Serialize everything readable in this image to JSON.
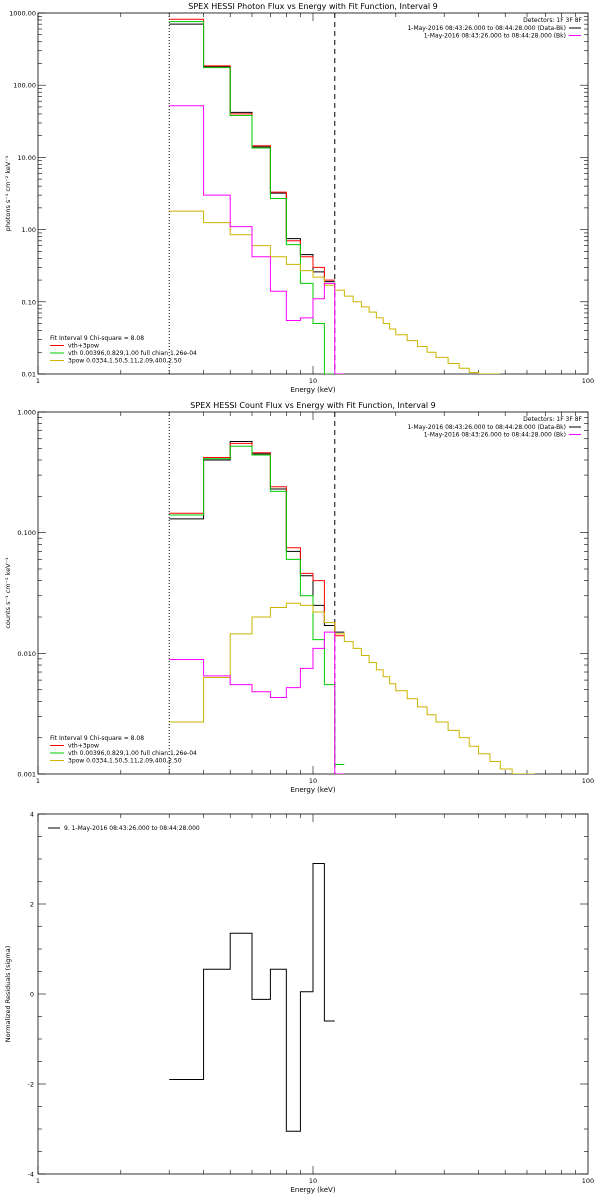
{
  "chart_data": [
    {
      "type": "line",
      "title": "SPEX HESSI Photon Flux vs Energy with Fit Function, Interval 9",
      "xlabel": "Energy (keV)",
      "ylabel": "photons s⁻¹ cm⁻² keV⁻¹",
      "xlim": [
        1,
        100
      ],
      "ylim": [
        0.01,
        1000
      ],
      "log_x": true,
      "log_y": true,
      "x_tick_labels": [
        "1",
        "10",
        "100"
      ],
      "y_tick_labels": [
        "0.01",
        "0.10",
        "1.00",
        "10.00",
        "100.00",
        "1000.00"
      ],
      "vlines": [
        {
          "x": 3,
          "style": "dotted",
          "color": "#000000"
        },
        {
          "x": 12,
          "style": "dashed",
          "color": "#000000"
        }
      ],
      "edges": [
        3,
        4,
        5,
        6,
        7,
        8,
        9,
        10,
        11,
        12,
        13,
        14,
        15,
        16,
        17,
        18,
        19,
        20,
        22,
        24,
        26,
        28,
        31,
        34,
        37,
        40,
        44,
        48
      ],
      "series": [
        {
          "name": "",
          "color": "#000000",
          "x_start": 3,
          "values": [
            700,
            180,
            42,
            14,
            3.2,
            0.75,
            0.45,
            0.26,
            0.19
          ]
        },
        {
          "name": "vth+3pow",
          "color": "#ff0000",
          "x_start": 3,
          "values": [
            820,
            185,
            40,
            14.5,
            3.3,
            0.7,
            0.42,
            0.3,
            0.2
          ]
        },
        {
          "name": "vth 0.00396,0.829,1.00  full chian 1.26e-04",
          "color": "#00cc00",
          "x_start": 3,
          "values": [
            760,
            175,
            38,
            13.5,
            2.7,
            0.62,
            0.18,
            0.05,
            0.004
          ]
        },
        {
          "name": "3pow 0.0334,1.50,5.11,2.09,400,2.50",
          "color": "#ccb400",
          "x_start": 3,
          "values": [
            1.8,
            1.25,
            0.85,
            0.6,
            0.42,
            0.33,
            0.27,
            0.22,
            0.17,
            0.145,
            0.12,
            0.1,
            0.085,
            0.072,
            0.06,
            0.05,
            0.042,
            0.035,
            0.029,
            0.024,
            0.02,
            0.017,
            0.014,
            0.012,
            0.0105,
            0.0095,
            0.008
          ]
        },
        {
          "name": "",
          "color": "#ff00ff",
          "x_start": 3,
          "values": [
            52,
            3,
            1.1,
            0.42,
            0.14,
            0.055,
            0.06,
            0.11,
            0.18,
            0.008
          ]
        }
      ],
      "legend": {
        "interval_label": "Fit Interval  9    Chi-square = 8.08",
        "detectors": "Detectors: 1F 3F 8F",
        "time_lines": [
          {
            "text": "1-May-2016 08:43:26.000 to 08:44:28.000 (Data-Bk)",
            "color": "#000000"
          },
          {
            "text": "1-May-2016 08:43:26.000 to 08:44:28.000 (Bk)",
            "color": "#ff00ff"
          }
        ]
      }
    },
    {
      "type": "line",
      "title": "SPEX HESSI Count Flux vs Energy with Fit Function, Interval 9",
      "xlabel": "Energy (keV)",
      "ylabel": "counts s⁻¹ cm⁻² keV⁻¹",
      "xlim": [
        1,
        100
      ],
      "ylim": [
        0.001,
        1
      ],
      "log_x": true,
      "log_y": true,
      "x_tick_labels": [
        "1",
        "10",
        "100"
      ],
      "y_tick_labels": [
        "0.001",
        "0.010",
        "0.100",
        "1.000"
      ],
      "vlines": [
        {
          "x": 3,
          "style": "dotted",
          "color": "#000000"
        },
        {
          "x": 12,
          "style": "dashed",
          "color": "#000000"
        }
      ],
      "edges": [
        3,
        4,
        5,
        6,
        7,
        8,
        9,
        10,
        11,
        12,
        13,
        14,
        15,
        16,
        17,
        18,
        19,
        20,
        22,
        24,
        26,
        28,
        31,
        34,
        37,
        40,
        44,
        48,
        53,
        58,
        64
      ],
      "series": [
        {
          "name": "",
          "color": "#000000",
          "x_start": 3,
          "values": [
            0.13,
            0.4,
            0.57,
            0.45,
            0.23,
            0.07,
            0.044,
            0.025,
            0.017,
            0.015
          ]
        },
        {
          "name": "vth+3pow",
          "color": "#ff0000",
          "x_start": 3,
          "values": [
            0.145,
            0.42,
            0.55,
            0.46,
            0.24,
            0.075,
            0.046,
            0.04,
            0.018,
            0.014
          ]
        },
        {
          "name": "vth 0.00396,0.829,1.00  full chian 1.26e-04",
          "color": "#00cc00",
          "x_start": 3,
          "values": [
            0.14,
            0.41,
            0.52,
            0.44,
            0.22,
            0.06,
            0.03,
            0.013,
            0.0055,
            0.0012
          ]
        },
        {
          "name": "3pow 0.0334,1.50,5.11,2.09,400,2.50",
          "color": "#ccb400",
          "x_start": 3,
          "values": [
            0.0027,
            0.0063,
            0.0145,
            0.02,
            0.024,
            0.026,
            0.025,
            0.022,
            0.018,
            0.0145,
            0.0125,
            0.011,
            0.0096,
            0.0084,
            0.0073,
            0.0064,
            0.0056,
            0.0049,
            0.0042,
            0.0036,
            0.0031,
            0.0027,
            0.0023,
            0.002,
            0.0017,
            0.00147,
            0.00127,
            0.0011,
            0.00095,
            0.00085
          ]
        },
        {
          "name": "",
          "color": "#ff00ff",
          "x_start": 3,
          "values": [
            0.0089,
            0.0065,
            0.0055,
            0.0048,
            0.0043,
            0.0052,
            0.0075,
            0.011,
            0.015,
            0.0009
          ]
        }
      ],
      "legend": {
        "interval_label": "Fit Interval  9    Chi-square = 8.08",
        "detectors": "Detectors: 1F 3F 8F",
        "time_lines": [
          {
            "text": "1-May-2016 08:43:26.000 to 08:44:28.000 (Data-Bk)",
            "color": "#000000"
          },
          {
            "text": "1-May-2016 08:43:26.000 to 08:44:28.000 (Bk)",
            "color": "#ff00ff"
          }
        ]
      }
    },
    {
      "type": "line",
      "title": "",
      "xlabel": "Energy (keV)",
      "ylabel": "Normalized Residuals (sigma)",
      "xlim": [
        1,
        100
      ],
      "ylim": [
        -4,
        4
      ],
      "log_x": true,
      "log_y": false,
      "x_tick_labels": [
        "1",
        "10",
        "100"
      ],
      "y_tick_labels": [
        "-4",
        "-2",
        "0",
        "2",
        "4"
      ],
      "edges": [
        3,
        4,
        5,
        6,
        7,
        8,
        9,
        10,
        11,
        12
      ],
      "series": [
        {
          "name": "9.  1-May-2016 08:43:26.000 to 08:44:28.000",
          "color": "#000000",
          "x_start": 3,
          "values": [
            -1.9,
            0.55,
            1.35,
            -0.12,
            0.55,
            -3.05,
            0.05,
            2.9,
            -0.6
          ]
        }
      ]
    }
  ]
}
